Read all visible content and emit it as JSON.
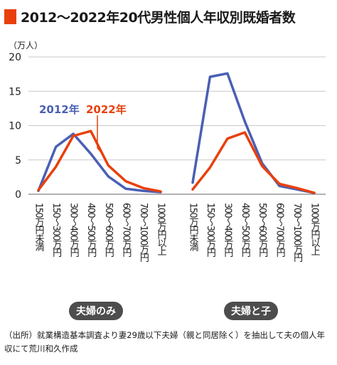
{
  "title": "2012～2022年20代男性個人年収別既婚者数",
  "unit_label": "（万人）",
  "source": "（出所）就業構造基本調査より妻29歳以下夫婦（親と同居除く）を抽出して夫の個人年収にて荒川和久作成",
  "colors": {
    "accent": "#e8400c",
    "series_2012": "#4a5fb4",
    "series_2022": "#e8400c",
    "panel_label_bg": "#4d4d4d"
  },
  "chart_data": {
    "type": "line",
    "ylabel": "（万人）",
    "ylim": [
      0,
      20
    ],
    "yticks": [
      "0",
      "5",
      "10",
      "15",
      "20"
    ],
    "grid": true,
    "legend": "inside top-left of first panel",
    "categories": [
      "150万円未満",
      "150～300万円",
      "300～400万円",
      "400～500万円",
      "500～600万円",
      "600～700万円",
      "700～1000万円",
      "1000万円以上"
    ],
    "panels": [
      {
        "label": "夫婦のみ",
        "series": [
          {
            "name": "2012年",
            "values": [
              0.5,
              6.9,
              8.8,
              5.9,
              2.6,
              0.8,
              0.5,
              0.3
            ]
          },
          {
            "name": "2022年",
            "values": [
              0.6,
              4.0,
              8.5,
              9.2,
              4.2,
              1.9,
              0.9,
              0.4
            ]
          }
        ]
      },
      {
        "label": "夫婦と子",
        "series": [
          {
            "name": "2012年",
            "values": [
              1.7,
              17.1,
              17.6,
              10.6,
              4.5,
              1.2,
              0.7,
              0.2
            ]
          },
          {
            "name": "2022年",
            "values": [
              0.7,
              3.9,
              8.1,
              9.0,
              4.1,
              1.5,
              0.9,
              0.2
            ]
          }
        ]
      }
    ]
  }
}
